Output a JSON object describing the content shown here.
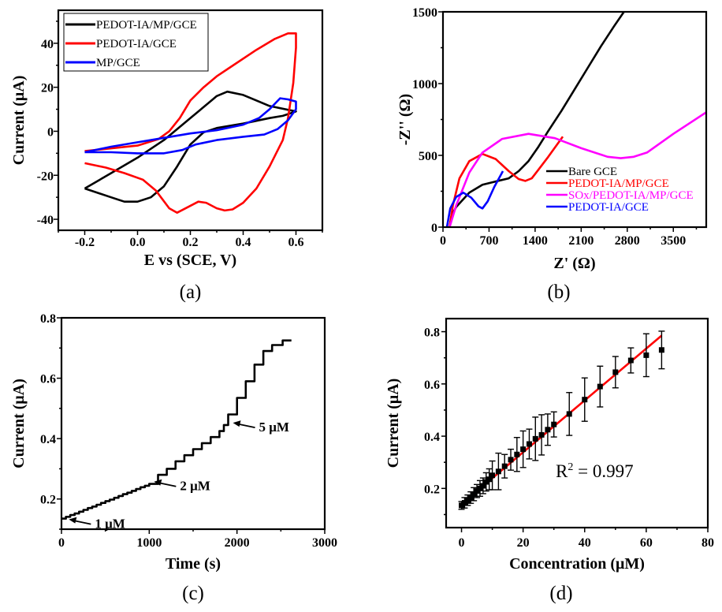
{
  "chart_data": [
    {
      "type": "line",
      "panel_label": "(a)",
      "xlabel": "E vs (SCE, V)",
      "ylabel": "Current (μA)",
      "xlim": [
        -0.3,
        0.7
      ],
      "ylim": [
        -45,
        55
      ],
      "x_ticks": [
        -0.2,
        0.0,
        0.2,
        0.4,
        0.6
      ],
      "x_tick_labels": [
        "-0.2",
        "0.0",
        "0.2",
        "0.4",
        "0.6"
      ],
      "y_ticks": [
        -40,
        -20,
        0,
        20,
        40
      ],
      "y_tick_labels": [
        "-40",
        "-20",
        "0",
        "20",
        "40"
      ],
      "legend_position": "top-left",
      "grid": false,
      "series": [
        {
          "name": "PEDOT-IA/MP/GCE",
          "color": "#000000",
          "points": [
            [
              -0.2,
              -26
            ],
            [
              -0.1,
              -19
            ],
            [
              0,
              -12
            ],
            [
              0.1,
              -4
            ],
            [
              0.15,
              1
            ],
            [
              0.2,
              6
            ],
            [
              0.25,
              11
            ],
            [
              0.3,
              16
            ],
            [
              0.34,
              18
            ],
            [
              0.4,
              16.5
            ],
            [
              0.5,
              11.5
            ],
            [
              0.6,
              9
            ],
            [
              0.55,
              7
            ],
            [
              0.5,
              6
            ],
            [
              0.4,
              3.5
            ],
            [
              0.3,
              1.5
            ],
            [
              0.25,
              -0.5
            ],
            [
              0.2,
              -6
            ],
            [
              0.15,
              -16
            ],
            [
              0.1,
              -25
            ],
            [
              0.05,
              -30
            ],
            [
              0,
              -32
            ],
            [
              -0.05,
              -32
            ],
            [
              -0.1,
              -30
            ],
            [
              -0.2,
              -26
            ]
          ]
        },
        {
          "name": "PEDOT-IA/GCE",
          "color": "#ff0000",
          "points": [
            [
              -0.2,
              -9
            ],
            [
              0,
              -6.5
            ],
            [
              0.08,
              -3.5
            ],
            [
              0.12,
              0
            ],
            [
              0.16,
              6
            ],
            [
              0.2,
              14
            ],
            [
              0.25,
              20
            ],
            [
              0.3,
              25
            ],
            [
              0.35,
              29
            ],
            [
              0.45,
              37
            ],
            [
              0.52,
              42
            ],
            [
              0.57,
              44.5
            ],
            [
              0.6,
              44.5
            ],
            [
              0.6,
              38
            ],
            [
              0.59,
              22
            ],
            [
              0.57,
              6
            ],
            [
              0.55,
              -4
            ],
            [
              0.5,
              -16
            ],
            [
              0.45,
              -26
            ],
            [
              0.4,
              -32.5
            ],
            [
              0.36,
              -35.5
            ],
            [
              0.33,
              -36
            ],
            [
              0.3,
              -35
            ],
            [
              0.26,
              -32.5
            ],
            [
              0.23,
              -32
            ],
            [
              0.19,
              -34.5
            ],
            [
              0.15,
              -37
            ],
            [
              0.12,
              -35
            ],
            [
              0.07,
              -27
            ],
            [
              0.02,
              -22
            ],
            [
              -0.05,
              -19
            ],
            [
              -0.12,
              -16.5
            ],
            [
              -0.2,
              -14.5
            ]
          ]
        },
        {
          "name": "MP/GCE",
          "color": "#0000ff",
          "points": [
            [
              -0.2,
              -9.5
            ],
            [
              -0.1,
              -7
            ],
            [
              0,
              -5
            ],
            [
              0.1,
              -3
            ],
            [
              0.2,
              -1
            ],
            [
              0.3,
              0.5
            ],
            [
              0.4,
              3
            ],
            [
              0.46,
              6
            ],
            [
              0.5,
              10
            ],
            [
              0.54,
              15
            ],
            [
              0.57,
              14.5
            ],
            [
              0.6,
              13.5
            ],
            [
              0.6,
              10
            ],
            [
              0.57,
              5
            ],
            [
              0.53,
              1
            ],
            [
              0.48,
              -1.5
            ],
            [
              0.4,
              -2.5
            ],
            [
              0.3,
              -4
            ],
            [
              0.22,
              -6
            ],
            [
              0.17,
              -8.5
            ],
            [
              0.1,
              -10
            ],
            [
              0,
              -10
            ],
            [
              -0.1,
              -9.5
            ],
            [
              -0.2,
              -9.5
            ]
          ]
        }
      ]
    },
    {
      "type": "line",
      "panel_label": "(b)",
      "xlabel": "Z' (Ω)",
      "ylabel": "-Z'' (Ω)",
      "xlim": [
        0,
        4000
      ],
      "ylim": [
        0,
        1500
      ],
      "x_ticks": [
        0,
        700,
        1400,
        2100,
        2800,
        3500
      ],
      "x_tick_labels": [
        "0",
        "700",
        "1400",
        "2100",
        "2800",
        "3500"
      ],
      "y_ticks": [
        0,
        500,
        1000,
        1500
      ],
      "y_tick_labels": [
        "0",
        "500",
        "1000",
        "1500"
      ],
      "legend_position": "center-right",
      "grid": false,
      "series": [
        {
          "name": "Bare GCE",
          "color": "#000000",
          "points": [
            [
              100,
              0
            ],
            [
              130,
              80
            ],
            [
              200,
              140
            ],
            [
              400,
              240
            ],
            [
              600,
              295
            ],
            [
              800,
              318
            ],
            [
              1000,
              340
            ],
            [
              1150,
              390
            ],
            [
              1300,
              460
            ],
            [
              1450,
              560
            ],
            [
              1600,
              670
            ],
            [
              1800,
              810
            ],
            [
              2000,
              960
            ],
            [
              2200,
              1110
            ],
            [
              2400,
              1260
            ],
            [
              2600,
              1400
            ],
            [
              2750,
              1500
            ]
          ]
        },
        {
          "name": "PEDOT-IA/MP/GCE",
          "color": "#ff0000",
          "points": [
            [
              100,
              0
            ],
            [
              150,
              150
            ],
            [
              250,
              340
            ],
            [
              400,
              460
            ],
            [
              600,
              510
            ],
            [
              800,
              475
            ],
            [
              1000,
              390
            ],
            [
              1150,
              335
            ],
            [
              1250,
              322
            ],
            [
              1350,
              340
            ],
            [
              1450,
              400
            ],
            [
              1600,
              490
            ],
            [
              1820,
              630
            ]
          ]
        },
        {
          "name": "SOx/PEDOT-IA/MP/GCE",
          "color": "#ff00ff",
          "points": [
            [
              100,
              0
            ],
            [
              200,
              150
            ],
            [
              400,
              380
            ],
            [
              600,
              520
            ],
            [
              900,
              615
            ],
            [
              1300,
              650
            ],
            [
              1700,
              620
            ],
            [
              2100,
              550
            ],
            [
              2500,
              490
            ],
            [
              2700,
              480
            ],
            [
              2900,
              490
            ],
            [
              3100,
              520
            ],
            [
              3500,
              650
            ],
            [
              4000,
              800
            ]
          ]
        },
        {
          "name": "PEDOT-IA/GCE",
          "color": "#0000ff",
          "points": [
            [
              60,
              0
            ],
            [
              110,
              130
            ],
            [
              200,
              210
            ],
            [
              310,
              240
            ],
            [
              430,
              205
            ],
            [
              540,
              145
            ],
            [
              600,
              130
            ],
            [
              680,
              180
            ],
            [
              780,
              280
            ],
            [
              910,
              390
            ]
          ]
        }
      ]
    },
    {
      "type": "line",
      "panel_label": "(c)",
      "xlabel": "Time (s)",
      "ylabel": "Current (μA)",
      "xlim": [
        0,
        3000
      ],
      "ylim": [
        0.1,
        0.8
      ],
      "x_ticks": [
        0,
        1000,
        2000,
        3000
      ],
      "x_tick_labels": [
        "0",
        "1000",
        "2000",
        "3000"
      ],
      "y_ticks": [
        0.2,
        0.4,
        0.6,
        0.8
      ],
      "y_tick_labels": [
        "0.2",
        "0.4",
        "0.6",
        "0.8"
      ],
      "grid": false,
      "series": [
        {
          "color": "#000000",
          "end_time": 2620,
          "steps": [
            [
              0,
              0.135
            ],
            [
              50,
              0.141
            ],
            [
              100,
              0.147
            ],
            [
              150,
              0.152
            ],
            [
              200,
              0.158
            ],
            [
              250,
              0.164
            ],
            [
              300,
              0.17
            ],
            [
              350,
              0.175
            ],
            [
              400,
              0.181
            ],
            [
              450,
              0.187
            ],
            [
              500,
              0.193
            ],
            [
              550,
              0.198
            ],
            [
              600,
              0.204
            ],
            [
              650,
              0.21
            ],
            [
              700,
              0.216
            ],
            [
              750,
              0.221
            ],
            [
              800,
              0.227
            ],
            [
              850,
              0.233
            ],
            [
              900,
              0.239
            ],
            [
              950,
              0.244
            ],
            [
              1000,
              0.25
            ],
            [
              1100,
              0.28
            ],
            [
              1200,
              0.3
            ],
            [
              1300,
              0.325
            ],
            [
              1400,
              0.345
            ],
            [
              1500,
              0.365
            ],
            [
              1600,
              0.385
            ],
            [
              1700,
              0.405
            ],
            [
              1800,
              0.425
            ],
            [
              1850,
              0.445
            ],
            [
              1900,
              0.48
            ],
            [
              2000,
              0.535
            ],
            [
              2100,
              0.59
            ],
            [
              2200,
              0.645
            ],
            [
              2300,
              0.69
            ],
            [
              2400,
              0.71
            ],
            [
              2520,
              0.725
            ]
          ]
        }
      ],
      "annotations": [
        {
          "text": "1 μM",
          "x": 30,
          "y": 0.135
        },
        {
          "text": "2 μM",
          "x": 1000,
          "y": 0.26
        },
        {
          "text": "5 μM",
          "x": 1900,
          "y": 0.455
        }
      ]
    },
    {
      "type": "scatter",
      "panel_label": "(d)",
      "xlabel": "Concentration (μM)",
      "ylabel": "Current (μA)",
      "xlim": [
        -5,
        80
      ],
      "ylim": [
        0.05,
        0.85
      ],
      "x_ticks": [
        0,
        20,
        40,
        60,
        80
      ],
      "x_tick_labels": [
        "0",
        "20",
        "40",
        "60",
        "80"
      ],
      "y_ticks": [
        0.2,
        0.4,
        0.6,
        0.8
      ],
      "y_tick_labels": [
        "0.2",
        "0.4",
        "0.6",
        "0.8"
      ],
      "grid": false,
      "x": [
        0,
        1,
        2,
        3,
        4,
        5,
        6,
        7,
        8,
        9,
        10,
        12,
        14,
        16,
        18,
        20,
        22,
        24,
        26,
        28,
        30,
        35,
        40,
        45,
        50,
        55,
        60,
        65
      ],
      "values": [
        0.135,
        0.145,
        0.155,
        0.165,
        0.178,
        0.19,
        0.2,
        0.21,
        0.225,
        0.235,
        0.25,
        0.265,
        0.285,
        0.31,
        0.33,
        0.35,
        0.37,
        0.39,
        0.405,
        0.425,
        0.445,
        0.485,
        0.54,
        0.59,
        0.645,
        0.69,
        0.71,
        0.73
      ],
      "errors": [
        0.015,
        0.02,
        0.02,
        0.022,
        0.025,
        0.025,
        0.03,
        0.03,
        0.035,
        0.04,
        0.055,
        0.07,
        0.045,
        0.04,
        0.065,
        0.07,
        0.057,
        0.083,
        0.077,
        0.06,
        0.048,
        0.082,
        0.083,
        0.078,
        0.06,
        0.048,
        0.082,
        0.072
      ],
      "marker_color": "#000000",
      "fit": {
        "color": "#ff0000",
        "x": [
          0,
          65
        ],
        "y": [
          0.14,
          0.785
        ]
      },
      "r2_label": "R",
      "r2_sup": "2",
      "r2_value": " = 0.997"
    }
  ]
}
